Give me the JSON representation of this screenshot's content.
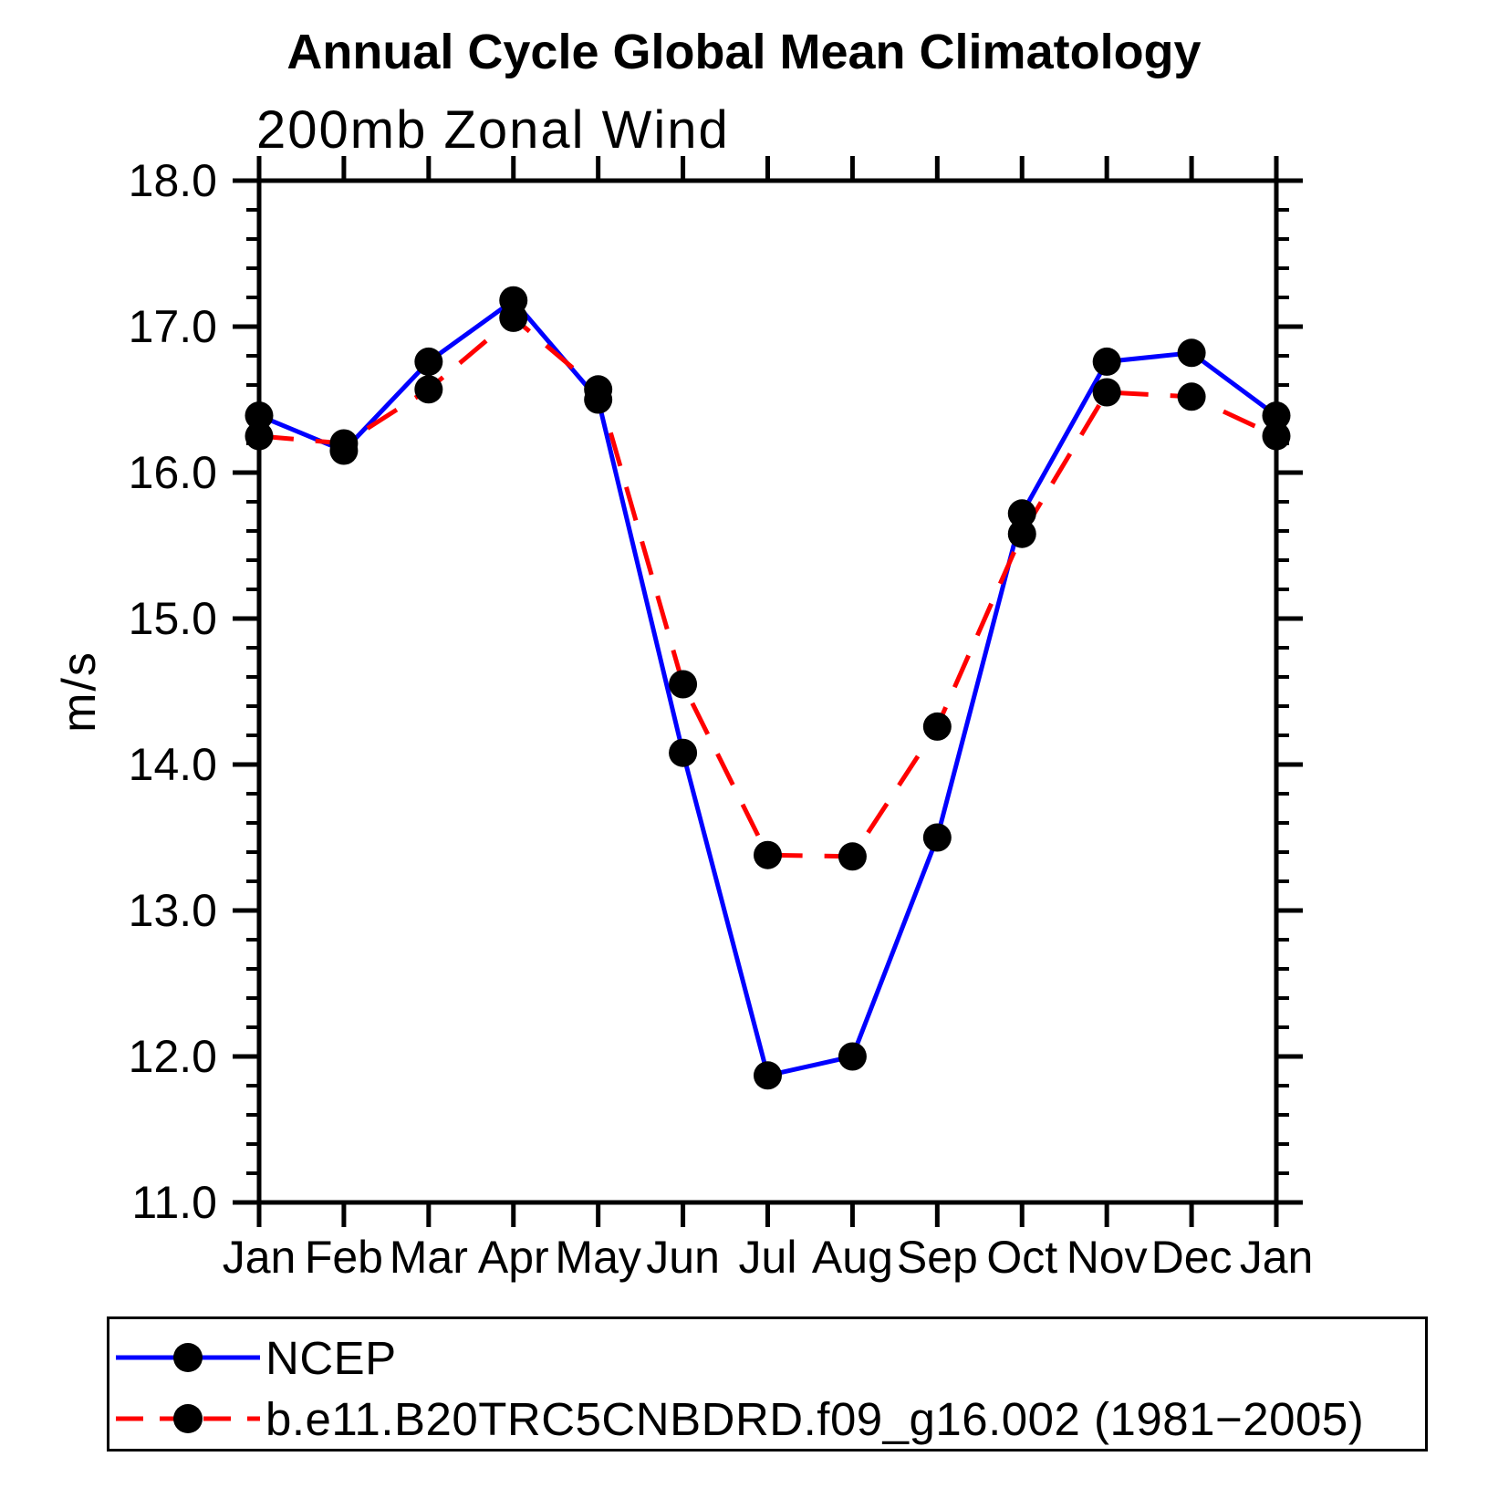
{
  "title": "Annual Cycle Global Mean Climatology",
  "chart_data": {
    "type": "line",
    "subtitle": "200mb Zonal Wind",
    "ylabel": "m/s",
    "ylim": [
      11.0,
      18.0
    ],
    "y_major_step": 1.0,
    "y_minor_step": 0.2,
    "y_tick_label_format": "one-decimal",
    "grid": false,
    "legend_position": "bottom",
    "axis_color": "#000000",
    "marker_glyph": "filled-circle",
    "categories": [
      "Jan",
      "Feb",
      "Mar",
      "Apr",
      "May",
      "Jun",
      "Jul",
      "Aug",
      "Sep",
      "Oct",
      "Nov",
      "Dec",
      "Jan"
    ],
    "series": [
      {
        "name": "NCEP",
        "color": "#0000ff",
        "line_style": "solid",
        "marker": "filled-circle",
        "marker_color": "#000000",
        "values": [
          16.39,
          16.15,
          16.76,
          17.18,
          16.5,
          14.08,
          11.87,
          12.0,
          13.5,
          15.72,
          16.76,
          16.82,
          16.39
        ]
      },
      {
        "name": "b.e11.B20TRC5CNBDRD.f09_g16.002 (1981−2005)",
        "color": "#ff0000",
        "line_style": "dashed",
        "marker": "filled-circle",
        "marker_color": "#000000",
        "values": [
          16.25,
          16.2,
          16.57,
          17.06,
          16.57,
          14.55,
          13.38,
          13.37,
          14.26,
          15.58,
          16.55,
          16.52,
          16.25
        ]
      }
    ]
  }
}
